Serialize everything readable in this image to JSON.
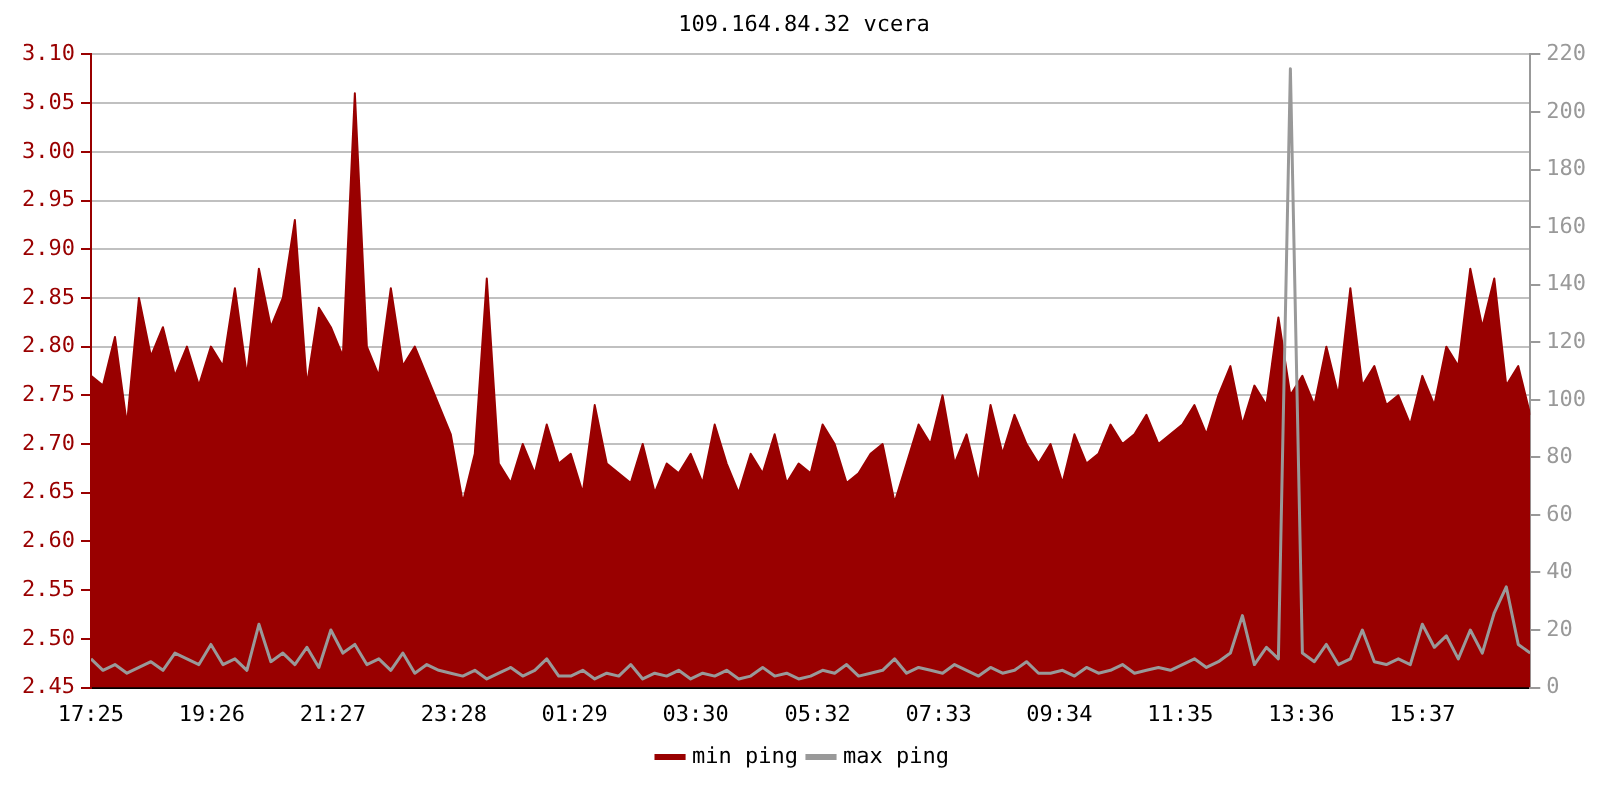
{
  "chart_data": {
    "type": "area",
    "title": "109.164.84.32 vcera",
    "x": [
      "--01-01T17:25",
      "--01-01T17:37",
      "--01-01T17:49",
      "--01-01T18:01",
      "--01-01T18:13",
      "--01-01T18:25",
      "--01-01T18:37",
      "--01-01T18:49",
      "--01-01T19:01",
      "--01-01T19:13",
      "--01-01T19:25",
      "--01-01T19:37",
      "--01-01T19:49",
      "--01-01T20:01",
      "--01-01T20:13",
      "--01-01T20:25",
      "--01-01T20:37",
      "--01-01T20:49",
      "--01-01T21:01",
      "--01-01T21:13",
      "--01-01T21:25",
      "--01-01T21:37",
      "--01-01T21:49",
      "--01-01T22:01",
      "--01-01T22:13",
      "--01-01T22:25",
      "--01-01T22:37",
      "--01-01T22:49",
      "--01-01T23:01",
      "--01-01T23:13",
      "--01-01T23:25",
      "--01-01T23:37",
      "--01-01T23:49",
      "--01-02T00:01",
      "--01-02T00:13",
      "--01-02T00:25",
      "--01-02T00:37",
      "--01-02T00:49",
      "--01-02T01:01",
      "--01-02T01:13",
      "--01-02T01:25",
      "--01-02T01:37",
      "--01-02T01:49",
      "--01-02T02:01",
      "--01-02T02:13",
      "--01-02T02:25",
      "--01-02T02:37",
      "--01-02T02:49",
      "--01-02T03:01",
      "--01-02T03:13",
      "--01-02T03:25",
      "--01-02T03:37",
      "--01-02T03:49",
      "--01-02T04:01",
      "--01-02T04:13",
      "--01-02T04:25",
      "--01-02T04:37",
      "--01-02T04:49",
      "--01-02T05:01",
      "--01-02T05:13",
      "--01-02T05:25",
      "--01-02T05:37",
      "--01-02T05:49",
      "--01-02T06:01",
      "--01-02T06:13",
      "--01-02T06:25",
      "--01-02T06:37",
      "--01-02T06:49",
      "--01-02T07:01",
      "--01-02T07:13",
      "--01-02T07:25",
      "--01-02T07:37",
      "--01-02T07:49",
      "--01-02T08:01",
      "--01-02T08:13",
      "--01-02T08:25",
      "--01-02T08:37",
      "--01-02T08:49",
      "--01-02T09:01",
      "--01-02T09:13",
      "--01-02T09:25",
      "--01-02T09:37",
      "--01-02T09:49",
      "--01-02T10:01",
      "--01-02T10:13",
      "--01-02T10:25",
      "--01-02T10:37",
      "--01-02T10:49",
      "--01-02T11:01",
      "--01-02T11:13",
      "--01-02T11:25",
      "--01-02T11:37",
      "--01-02T11:49",
      "--01-02T12:01",
      "--01-02T12:13",
      "--01-02T12:25",
      "--01-02T12:37",
      "--01-02T12:49",
      "--01-02T13:01",
      "--01-02T13:13",
      "--01-02T13:25",
      "--01-02T13:37",
      "--01-02T13:49",
      "--01-02T14:01",
      "--01-02T14:13",
      "--01-02T14:25",
      "--01-02T14:37",
      "--01-02T14:49",
      "--01-02T15:01",
      "--01-02T15:13",
      "--01-02T15:25",
      "--01-02T15:37",
      "--01-02T15:49",
      "--01-02T16:01",
      "--01-02T16:13",
      "--01-02T16:25",
      "--01-02T16:37",
      "--01-02T16:49",
      "--01-02T17:01",
      "--01-02T17:13",
      "--01-02T17:25"
    ],
    "series": [
      {
        "name": "min ping",
        "color": "#990000",
        "values": [
          2.77,
          2.76,
          2.81,
          2.72,
          2.85,
          2.79,
          2.82,
          2.77,
          2.8,
          2.76,
          2.8,
          2.78,
          2.86,
          2.77,
          2.88,
          2.82,
          2.85,
          2.93,
          2.76,
          2.84,
          2.82,
          2.79,
          3.06,
          2.8,
          2.77,
          2.86,
          2.78,
          2.8,
          2.77,
          2.74,
          2.71,
          2.64,
          2.69,
          2.87,
          2.68,
          2.66,
          2.7,
          2.67,
          2.72,
          2.68,
          2.69,
          2.65,
          2.74,
          2.68,
          2.67,
          2.66,
          2.7,
          2.65,
          2.68,
          2.67,
          2.69,
          2.66,
          2.72,
          2.68,
          2.65,
          2.69,
          2.67,
          2.71,
          2.66,
          2.68,
          2.67,
          2.72,
          2.7,
          2.66,
          2.67,
          2.69,
          2.7,
          2.64,
          2.68,
          2.72,
          2.7,
          2.75,
          2.68,
          2.71,
          2.66,
          2.74,
          2.69,
          2.73,
          2.7,
          2.68,
          2.7,
          2.66,
          2.71,
          2.68,
          2.69,
          2.72,
          2.7,
          2.71,
          2.73,
          2.7,
          2.71,
          2.72,
          2.74,
          2.71,
          2.75,
          2.78,
          2.72,
          2.76,
          2.74,
          2.83,
          2.75,
          2.77,
          2.74,
          2.8,
          2.75,
          2.86,
          2.76,
          2.78,
          2.74,
          2.75,
          2.72,
          2.77,
          2.74,
          2.8,
          2.78,
          2.88,
          2.82,
          2.87,
          2.76,
          2.78,
          2.73
        ]
      },
      {
        "name": "max ping",
        "type": "line",
        "axis": "y2",
        "color": "#999999",
        "values": [
          10,
          6,
          8,
          5,
          7,
          9,
          6,
          12,
          10,
          8,
          15,
          8,
          10,
          6,
          22,
          9,
          12,
          8,
          14,
          7,
          20,
          12,
          15,
          8,
          10,
          6,
          12,
          5,
          8,
          6,
          5,
          4,
          6,
          3,
          5,
          7,
          4,
          6,
          10,
          4,
          4,
          6,
          3,
          5,
          4,
          8,
          3,
          5,
          4,
          6,
          3,
          5,
          4,
          6,
          3,
          4,
          7,
          4,
          5,
          3,
          4,
          6,
          5,
          8,
          4,
          5,
          6,
          10,
          5,
          7,
          6,
          5,
          8,
          6,
          4,
          7,
          5,
          6,
          9,
          5,
          5,
          6,
          4,
          7,
          5,
          6,
          8,
          5,
          6,
          7,
          6,
          8,
          10,
          7,
          9,
          12,
          25,
          8,
          14,
          10,
          215,
          12,
          9,
          15,
          8,
          10,
          20,
          9,
          8,
          10,
          8,
          22,
          14,
          18,
          10,
          20,
          12,
          26,
          35,
          15,
          12
        ]
      }
    ],
    "xlim": [
      "--01-01T17:25",
      "--01-02T17:25"
    ],
    "xticks": [
      {
        "value": "--01-01T17:25",
        "label": "17:25"
      },
      {
        "value": "--01-01T19:26",
        "label": "19:26"
      },
      {
        "value": "--01-01T21:27",
        "label": "21:27"
      },
      {
        "value": "--01-01T23:28",
        "label": "23:28"
      },
      {
        "value": "--01-02T01:29",
        "label": "01:29"
      },
      {
        "value": "--01-02T03:30",
        "label": "03:30"
      },
      {
        "value": "--01-02T05:32",
        "label": "05:32"
      },
      {
        "value": "--01-02T07:33",
        "label": "07:33"
      },
      {
        "value": "--01-02T09:34",
        "label": "09:34"
      },
      {
        "value": "--01-02T11:35",
        "label": "11:35"
      },
      {
        "value": "--01-02T13:36",
        "label": "13:36"
      },
      {
        "value": "--01-02T15:37",
        "label": "15:37"
      }
    ],
    "ylim": [
      2.45,
      3.1
    ],
    "yticks": [
      {
        "value": 2.45,
        "label": "2.45"
      },
      {
        "value": 2.5,
        "label": "2.50"
      },
      {
        "value": 2.55,
        "label": "2.55"
      },
      {
        "value": 2.6,
        "label": "2.60"
      },
      {
        "value": 2.65,
        "label": "2.65"
      },
      {
        "value": 2.7,
        "label": "2.70"
      },
      {
        "value": 2.75,
        "label": "2.75"
      },
      {
        "value": 2.8,
        "label": "2.80"
      },
      {
        "value": 2.85,
        "label": "2.85"
      },
      {
        "value": 2.9,
        "label": "2.90"
      },
      {
        "value": 2.95,
        "label": "2.95"
      },
      {
        "value": 3.0,
        "label": "3.00"
      },
      {
        "value": 3.05,
        "label": "3.05"
      },
      {
        "value": 3.1,
        "label": "3.10"
      }
    ],
    "y2lim": [
      0,
      220
    ],
    "y2ticks": [
      0,
      20,
      40,
      60,
      80,
      100,
      120,
      140,
      160,
      180,
      200,
      220
    ],
    "grid": "y",
    "legend": "bottom",
    "marker": "none"
  }
}
